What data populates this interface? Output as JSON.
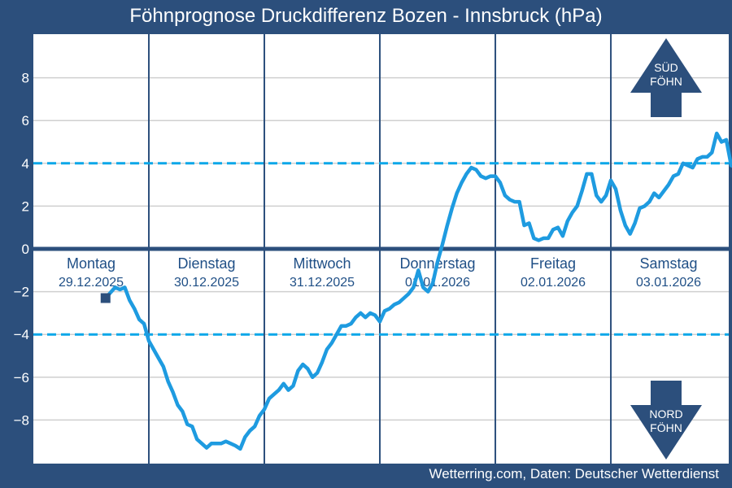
{
  "title": "Föhnprognose Druckdifferenz Bozen - Innsbruck (hPa)",
  "source": "Wetterring.com, Daten: Deutscher Wetterdienst",
  "colors": {
    "background": "#2c4f7c",
    "plot": "#ffffff",
    "line": "#1e9be0",
    "threshold": "#0aa7e8",
    "axis": "#2c4f7c",
    "marker": "#2c4f7c"
  },
  "arrows": {
    "south": [
      "SÜD",
      "FÖHN"
    ],
    "north": [
      "NORD",
      "FÖHN"
    ]
  },
  "chart_data": {
    "type": "line",
    "title": "Föhnprognose Druckdifferenz Bozen - Innsbruck (hPa)",
    "xlabel": "",
    "ylabel": "",
    "x_unit": "hours since Montag 29.12.2025 00:00",
    "xlim": [
      0,
      144
    ],
    "ylim": [
      -10,
      10
    ],
    "yticks": [
      -8,
      -6,
      -4,
      -2,
      0,
      2,
      4,
      6,
      8
    ],
    "grid": true,
    "days": [
      {
        "name": "Montag",
        "date": "29.12.2025"
      },
      {
        "name": "Dienstag",
        "date": "30.12.2025"
      },
      {
        "name": "Mittwoch",
        "date": "31.12.2025"
      },
      {
        "name": "Donnerstag",
        "date": "01.01.2026"
      },
      {
        "name": "Freitag",
        "date": "02.01.2026"
      },
      {
        "name": "Samstag",
        "date": "03.01.2026"
      }
    ],
    "thresholds": [
      4,
      -4
    ],
    "start_marker": {
      "x": 15,
      "y": -2.3
    },
    "series": [
      {
        "points": [
          [
            15,
            -2.3
          ],
          [
            17,
            -1.8
          ],
          [
            18,
            -1.9
          ],
          [
            19,
            -1.8
          ],
          [
            20,
            -2.4
          ],
          [
            21,
            -2.8
          ],
          [
            22,
            -3.3
          ],
          [
            23,
            -3.5
          ],
          [
            24,
            -4.3
          ],
          [
            25,
            -4.7
          ],
          [
            26,
            -5.1
          ],
          [
            27,
            -5.5
          ],
          [
            28,
            -6.2
          ],
          [
            29,
            -6.7
          ],
          [
            30,
            -7.3
          ],
          [
            31,
            -7.6
          ],
          [
            32,
            -8.2
          ],
          [
            33,
            -8.3
          ],
          [
            34,
            -8.9
          ],
          [
            35,
            -9.1
          ],
          [
            36,
            -9.3
          ],
          [
            37,
            -9.1
          ],
          [
            38,
            -9.1
          ],
          [
            39,
            -9.1
          ],
          [
            40,
            -9.0
          ],
          [
            41,
            -9.1
          ],
          [
            42,
            -9.2
          ],
          [
            43,
            -9.35
          ],
          [
            44,
            -8.8
          ],
          [
            45,
            -8.5
          ],
          [
            46,
            -8.3
          ],
          [
            47,
            -7.8
          ],
          [
            48,
            -7.5
          ],
          [
            49,
            -7.0
          ],
          [
            50,
            -6.8
          ],
          [
            51,
            -6.6
          ],
          [
            52,
            -6.3
          ],
          [
            53,
            -6.6
          ],
          [
            54,
            -6.4
          ],
          [
            55,
            -5.7
          ],
          [
            56,
            -5.4
          ],
          [
            57,
            -5.6
          ],
          [
            58,
            -6.0
          ],
          [
            59,
            -5.8
          ],
          [
            60,
            -5.3
          ],
          [
            61,
            -4.7
          ],
          [
            62,
            -4.4
          ],
          [
            63,
            -4.0
          ],
          [
            64,
            -3.6
          ],
          [
            65,
            -3.6
          ],
          [
            66,
            -3.5
          ],
          [
            67,
            -3.2
          ],
          [
            68,
            -3.0
          ],
          [
            69,
            -3.2
          ],
          [
            70,
            -3.0
          ],
          [
            71,
            -3.1
          ],
          [
            72,
            -3.4
          ],
          [
            73,
            -2.9
          ],
          [
            74,
            -2.8
          ],
          [
            75,
            -2.6
          ],
          [
            76,
            -2.5
          ],
          [
            77,
            -2.3
          ],
          [
            78,
            -2.1
          ],
          [
            79,
            -1.8
          ],
          [
            80,
            -1.0
          ],
          [
            81,
            -1.8
          ],
          [
            82,
            -2.0
          ],
          [
            83,
            -1.6
          ],
          [
            84,
            -0.6
          ],
          [
            85,
            0.2
          ],
          [
            86,
            1.1
          ],
          [
            87,
            1.9
          ],
          [
            88,
            2.6
          ],
          [
            89,
            3.1
          ],
          [
            90,
            3.5
          ],
          [
            91,
            3.8
          ],
          [
            92,
            3.7
          ],
          [
            93,
            3.4
          ],
          [
            94,
            3.3
          ],
          [
            95,
            3.4
          ],
          [
            96,
            3.4
          ],
          [
            97,
            3.1
          ],
          [
            98,
            2.5
          ],
          [
            99,
            2.3
          ],
          [
            100,
            2.2
          ],
          [
            101,
            2.2
          ],
          [
            102,
            1.1
          ],
          [
            103,
            1.2
          ],
          [
            104,
            0.5
          ],
          [
            105,
            0.4
          ],
          [
            106,
            0.5
          ],
          [
            107,
            0.5
          ],
          [
            108,
            0.9
          ],
          [
            109,
            1.0
          ],
          [
            110,
            0.6
          ],
          [
            111,
            1.3
          ],
          [
            112,
            1.7
          ],
          [
            113,
            2.0
          ],
          [
            114,
            2.7
          ],
          [
            115,
            3.5
          ],
          [
            116,
            3.5
          ],
          [
            117,
            2.5
          ],
          [
            118,
            2.2
          ],
          [
            119,
            2.5
          ],
          [
            120,
            3.2
          ],
          [
            121,
            2.8
          ],
          [
            122,
            1.8
          ],
          [
            123,
            1.1
          ],
          [
            124,
            0.7
          ],
          [
            125,
            1.2
          ],
          [
            126,
            1.9
          ],
          [
            127,
            2.0
          ],
          [
            128,
            2.2
          ],
          [
            129,
            2.6
          ],
          [
            130,
            2.4
          ],
          [
            131,
            2.7
          ],
          [
            132,
            3.0
          ],
          [
            133,
            3.4
          ],
          [
            134,
            3.5
          ],
          [
            135,
            4.0
          ],
          [
            136,
            3.9
          ],
          [
            137,
            3.8
          ],
          [
            138,
            4.2
          ],
          [
            139,
            4.3
          ],
          [
            140,
            4.3
          ],
          [
            141,
            4.5
          ],
          [
            142,
            5.4
          ],
          [
            143,
            5.0
          ],
          [
            144,
            5.1
          ],
          [
            145,
            3.9
          ],
          [
            146,
            3.8
          ],
          [
            147,
            4.0
          ]
        ]
      }
    ]
  }
}
